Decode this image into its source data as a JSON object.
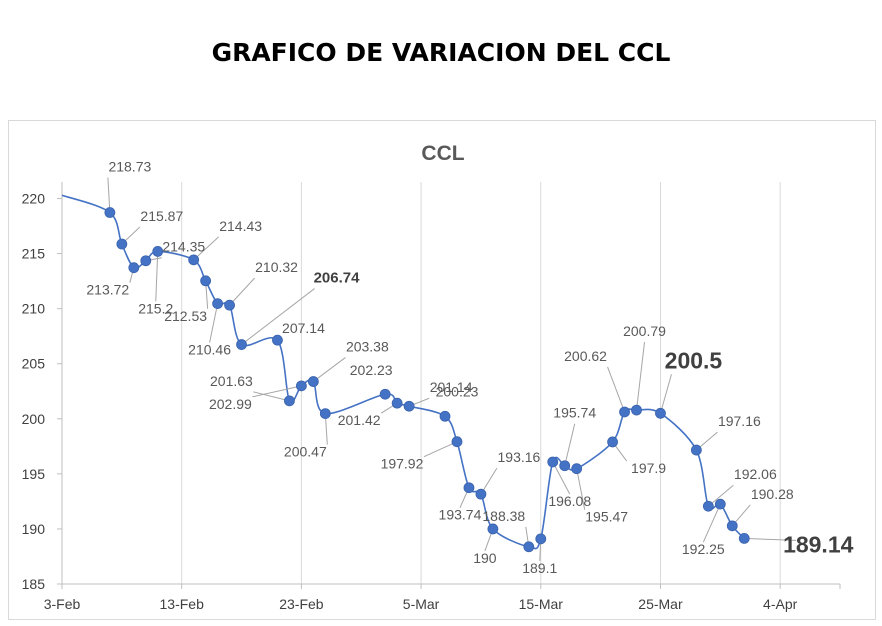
{
  "page": {
    "title": "GRAFICO DE VARIACION DEL CCL"
  },
  "chart_data": {
    "type": "line",
    "title": "CCL",
    "xlabel": "",
    "ylabel": "",
    "grid": "vertical",
    "x_ticks": [
      "3-Feb",
      "13-Feb",
      "23-Feb",
      "5-Mar",
      "15-Mar",
      "25-Mar",
      "4-Apr"
    ],
    "y_ticks": [
      185,
      190,
      195,
      200,
      205,
      210,
      215,
      220
    ],
    "ylim": [
      185,
      221.5
    ],
    "xlim": [
      "2022-02-03",
      "2022-04-09"
    ],
    "series": [
      {
        "color": "#4472c4",
        "points": [
          {
            "x": "2022-02-03",
            "y": 220.3,
            "label": ""
          },
          {
            "x": "2022-02-07",
            "y": 218.73,
            "label": "218.73"
          },
          {
            "x": "2022-02-08",
            "y": 215.87,
            "label": "215.87"
          },
          {
            "x": "2022-02-09",
            "y": 213.72,
            "label": "213.72"
          },
          {
            "x": "2022-02-10",
            "y": 214.35,
            "label": "214.35"
          },
          {
            "x": "2022-02-11",
            "y": 215.2,
            "label": "215.2"
          },
          {
            "x": "2022-02-14",
            "y": 214.43,
            "label": "214.43"
          },
          {
            "x": "2022-02-15",
            "y": 212.53,
            "label": "212.53"
          },
          {
            "x": "2022-02-16",
            "y": 210.46,
            "label": "210.46"
          },
          {
            "x": "2022-02-17",
            "y": 210.32,
            "label": "210.32"
          },
          {
            "x": "2022-02-18",
            "y": 206.74,
            "label": "206.74"
          },
          {
            "x": "2022-02-21",
            "y": 207.14,
            "label": "207.14"
          },
          {
            "x": "2022-02-22",
            "y": 201.63,
            "label": "201.63"
          },
          {
            "x": "2022-02-23",
            "y": 202.99,
            "label": "202.99"
          },
          {
            "x": "2022-02-24",
            "y": 203.38,
            "label": "203.38"
          },
          {
            "x": "2022-02-25",
            "y": 200.47,
            "label": "200.47"
          },
          {
            "x": "2022-03-02",
            "y": 202.23,
            "label": "202.23"
          },
          {
            "x": "2022-03-03",
            "y": 201.42,
            "label": "201.42"
          },
          {
            "x": "2022-03-04",
            "y": 201.14,
            "label": "201.14"
          },
          {
            "x": "2022-03-07",
            "y": 200.23,
            "label": "200.23"
          },
          {
            "x": "2022-03-08",
            "y": 197.92,
            "label": "197.92"
          },
          {
            "x": "2022-03-09",
            "y": 193.74,
            "label": "193.74"
          },
          {
            "x": "2022-03-10",
            "y": 193.16,
            "label": "193.16"
          },
          {
            "x": "2022-03-11",
            "y": 190,
            "label": "190"
          },
          {
            "x": "2022-03-14",
            "y": 188.38,
            "label": "188.38"
          },
          {
            "x": "2022-03-15",
            "y": 189.1,
            "label": "189.1"
          },
          {
            "x": "2022-03-16",
            "y": 196.08,
            "label": "196.08"
          },
          {
            "x": "2022-03-17",
            "y": 195.74,
            "label": "195.74"
          },
          {
            "x": "2022-03-18",
            "y": 195.47,
            "label": "195.47"
          },
          {
            "x": "2022-03-21",
            "y": 197.9,
            "label": "197.9"
          },
          {
            "x": "2022-03-22",
            "y": 200.62,
            "label": "200.62"
          },
          {
            "x": "2022-03-23",
            "y": 200.79,
            "label": "200.79"
          },
          {
            "x": "2022-03-25",
            "y": 200.5,
            "label": "200.5"
          },
          {
            "x": "2022-03-28",
            "y": 197.16,
            "label": "197.16"
          },
          {
            "x": "2022-03-29",
            "y": 192.06,
            "label": "192.06"
          },
          {
            "x": "2022-03-30",
            "y": 192.25,
            "label": "192.25"
          },
          {
            "x": "2022-03-31",
            "y": 190.28,
            "label": "190.28"
          },
          {
            "x": "2022-04-01",
            "y": 189.14,
            "label": "189.14"
          }
        ]
      }
    ]
  }
}
